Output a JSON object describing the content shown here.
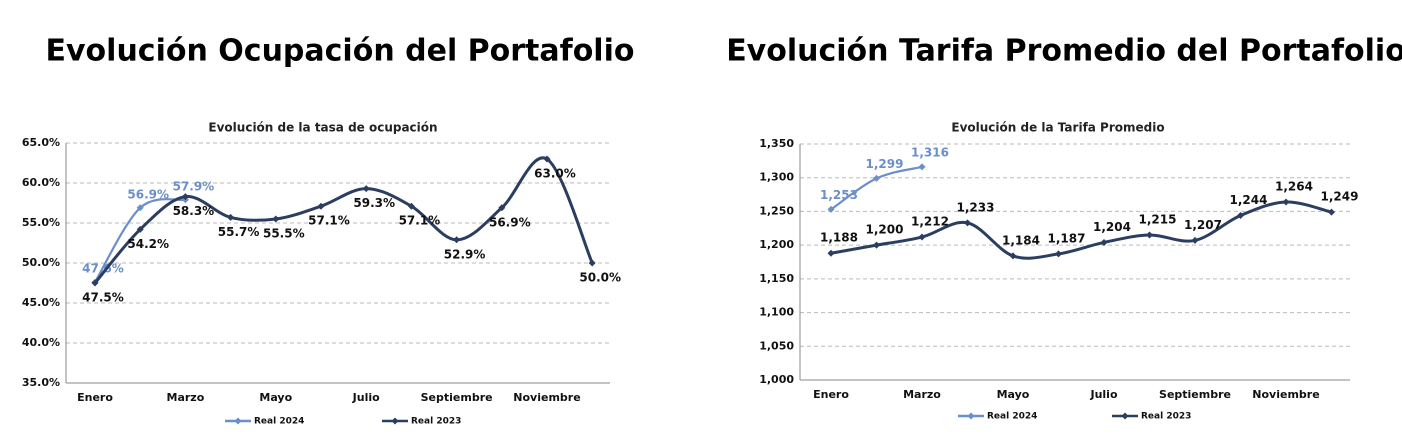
{
  "chart_data": [
    {
      "type": "line",
      "heading": "Evolución Ocupación del Portafolio",
      "title": "Evolución de la tasa de ocupación",
      "categories": [
        "Enero",
        null,
        "Marzo",
        null,
        "Mayo",
        null,
        "Julio",
        null,
        "Septiembre",
        null,
        "Noviembre",
        null
      ],
      "ylim": [
        35,
        65
      ],
      "yticks": [
        {
          "value": 35,
          "label": "35.0%"
        },
        {
          "value": 40,
          "label": "40.0%"
        },
        {
          "value": 45,
          "label": "45.0%"
        },
        {
          "value": 50,
          "label": "50.0%"
        },
        {
          "value": 55,
          "label": "55.0%"
        },
        {
          "value": 60,
          "label": "60.0%"
        },
        {
          "value": 65,
          "label": "65.0%"
        }
      ],
      "grid": true,
      "series": [
        {
          "name": "Real 2024",
          "color": "#6b8fc9",
          "values": [
            47.6,
            56.9,
            57.9,
            null,
            null,
            null,
            null,
            null,
            null,
            null,
            null,
            null
          ],
          "value_labels": [
            "47.6%",
            "56.9%",
            "57.9%",
            null,
            null,
            null,
            null,
            null,
            null,
            null,
            null,
            null
          ]
        },
        {
          "name": "Real 2023",
          "color": "#2c3e60",
          "values": [
            47.5,
            54.2,
            58.3,
            55.7,
            55.5,
            57.1,
            59.3,
            57.1,
            52.9,
            56.9,
            63.0,
            50.0
          ],
          "value_labels": [
            "47.5%",
            "54.2%",
            "58.3%",
            "55.7%",
            "55.5%",
            "57.1%",
            "59.3%",
            "57.1%",
            "52.9%",
            "56.9%",
            "63.0%",
            "50.0%"
          ]
        }
      ]
    },
    {
      "type": "line",
      "heading": "Evolución Tarifa Promedio del Portafolio",
      "title": "Evolución de la Tarifa Promedio",
      "categories": [
        "Enero",
        null,
        "Marzo",
        null,
        "Mayo",
        null,
        "Julio",
        null,
        "Septiembre",
        null,
        "Noviembre",
        null
      ],
      "ylim": [
        1000,
        1350
      ],
      "yticks": [
        {
          "value": 1000,
          "label": "1,000"
        },
        {
          "value": 1050,
          "label": "1,050"
        },
        {
          "value": 1100,
          "label": "1,100"
        },
        {
          "value": 1150,
          "label": "1,150"
        },
        {
          "value": 1200,
          "label": "1,200"
        },
        {
          "value": 1250,
          "label": "1,250"
        },
        {
          "value": 1300,
          "label": "1,300"
        },
        {
          "value": 1350,
          "label": "1,350"
        }
      ],
      "grid": true,
      "series": [
        {
          "name": "Real 2024",
          "color": "#6b8fc9",
          "values": [
            1253,
            1299,
            1316,
            null,
            null,
            null,
            null,
            null,
            null,
            null,
            null,
            null
          ],
          "value_labels": [
            "1,253",
            "1,299",
            "1,316",
            null,
            null,
            null,
            null,
            null,
            null,
            null,
            null,
            null
          ]
        },
        {
          "name": "Real 2023",
          "color": "#2c3e60",
          "values": [
            1188,
            1200,
            1212,
            1233,
            1184,
            1187,
            1204,
            1215,
            1207,
            1244,
            1264,
            1249
          ],
          "value_labels": [
            "1,188",
            "1,200",
            "1,212",
            "1,233",
            "1,184",
            "1,187",
            "1,204",
            "1,215",
            "1,207",
            "1,244",
            "1,264",
            "1,249"
          ]
        }
      ]
    }
  ]
}
